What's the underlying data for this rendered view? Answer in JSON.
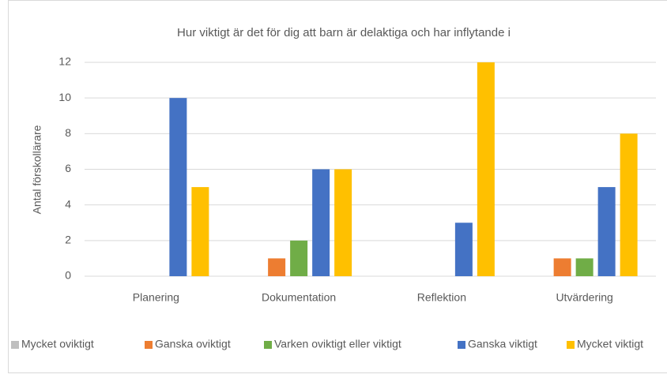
{
  "chart_data": {
    "type": "bar",
    "title": "Hur viktigt är det för dig att barn är delaktiga och har inflytande i",
    "y_label": "Antal förskollärare",
    "categories": [
      "Planering",
      "Dokumentation",
      "Reflektion",
      "Utvärdering"
    ],
    "series": [
      {
        "name": "Mycket oviktigt",
        "color": "#bfbfbf",
        "values": [
          0,
          0,
          0,
          0
        ]
      },
      {
        "name": "Ganska oviktigt",
        "color": "#ed7d31",
        "values": [
          0,
          1,
          0,
          1
        ]
      },
      {
        "name": "Varken oviktigt eller viktigt",
        "color": "#70ad47",
        "values": [
          0,
          2,
          0,
          1
        ]
      },
      {
        "name": "Ganska viktigt",
        "color": "#4472c4",
        "values": [
          10,
          6,
          3,
          5
        ]
      },
      {
        "name": "Mycket viktigt",
        "color": "#ffc000",
        "values": [
          5,
          6,
          12,
          8
        ]
      }
    ],
    "ylim": [
      0,
      12
    ],
    "yticks": [
      0,
      2,
      4,
      6,
      8,
      10,
      12
    ],
    "grid": true,
    "legend": "bottom"
  }
}
